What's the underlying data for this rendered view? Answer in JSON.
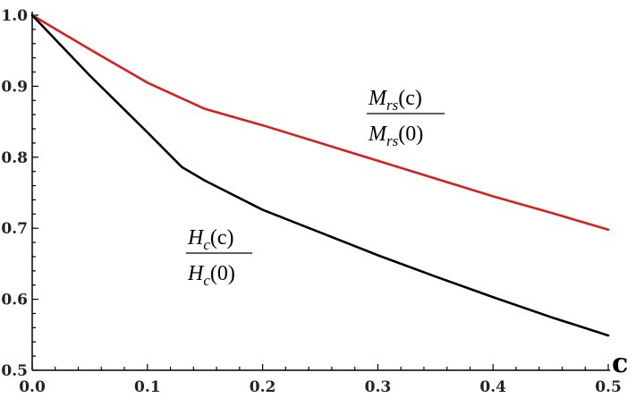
{
  "chart_data": {
    "type": "line",
    "title": "",
    "xlabel": "c",
    "ylabel": "",
    "xlim": [
      0,
      0.5
    ],
    "ylim": [
      0.5,
      1.0
    ],
    "grid": false,
    "x_ticks": [
      0.0,
      0.1,
      0.2,
      0.3,
      0.4,
      0.5
    ],
    "x_tick_labels": [
      "0.0",
      "0.1",
      "0.2",
      "0.3",
      "0.4",
      "0.5"
    ],
    "y_ticks": [
      0.5,
      0.6,
      0.7,
      0.8,
      0.9,
      1.0
    ],
    "y_tick_labels": [
      "0.5",
      "0.6",
      "0.7",
      "0.8",
      "0.9",
      "1.0"
    ],
    "series": [
      {
        "name": "M_rs(c)/M_rs(0)",
        "color": "#d42020",
        "x": [
          0.0,
          0.05,
          0.1,
          0.15,
          0.2,
          0.25,
          0.3,
          0.35,
          0.4,
          0.45,
          0.5
        ],
        "y": [
          1.0,
          0.952,
          0.905,
          0.868,
          0.845,
          0.82,
          0.795,
          0.77,
          0.745,
          0.722,
          0.698
        ]
      },
      {
        "name": "H_c(c)/H_c(0)",
        "color": "#000000",
        "x": [
          0.0,
          0.05,
          0.1,
          0.13,
          0.15,
          0.2,
          0.25,
          0.3,
          0.35,
          0.4,
          0.45,
          0.5
        ],
        "y": [
          1.0,
          0.915,
          0.835,
          0.786,
          0.767,
          0.726,
          0.694,
          0.662,
          0.632,
          0.603,
          0.575,
          0.549
        ]
      }
    ],
    "annotations": {
      "m": {
        "num_main": "M",
        "num_sub": "rs",
        "num_arg": "(c)",
        "den_main": "M",
        "den_sub": "rs",
        "den_arg": "(0)"
      },
      "h": {
        "num_main": "H",
        "num_sub": "c",
        "num_arg": "(c)",
        "den_main": "H",
        "den_sub": "c",
        "den_arg": "(0)"
      }
    }
  }
}
